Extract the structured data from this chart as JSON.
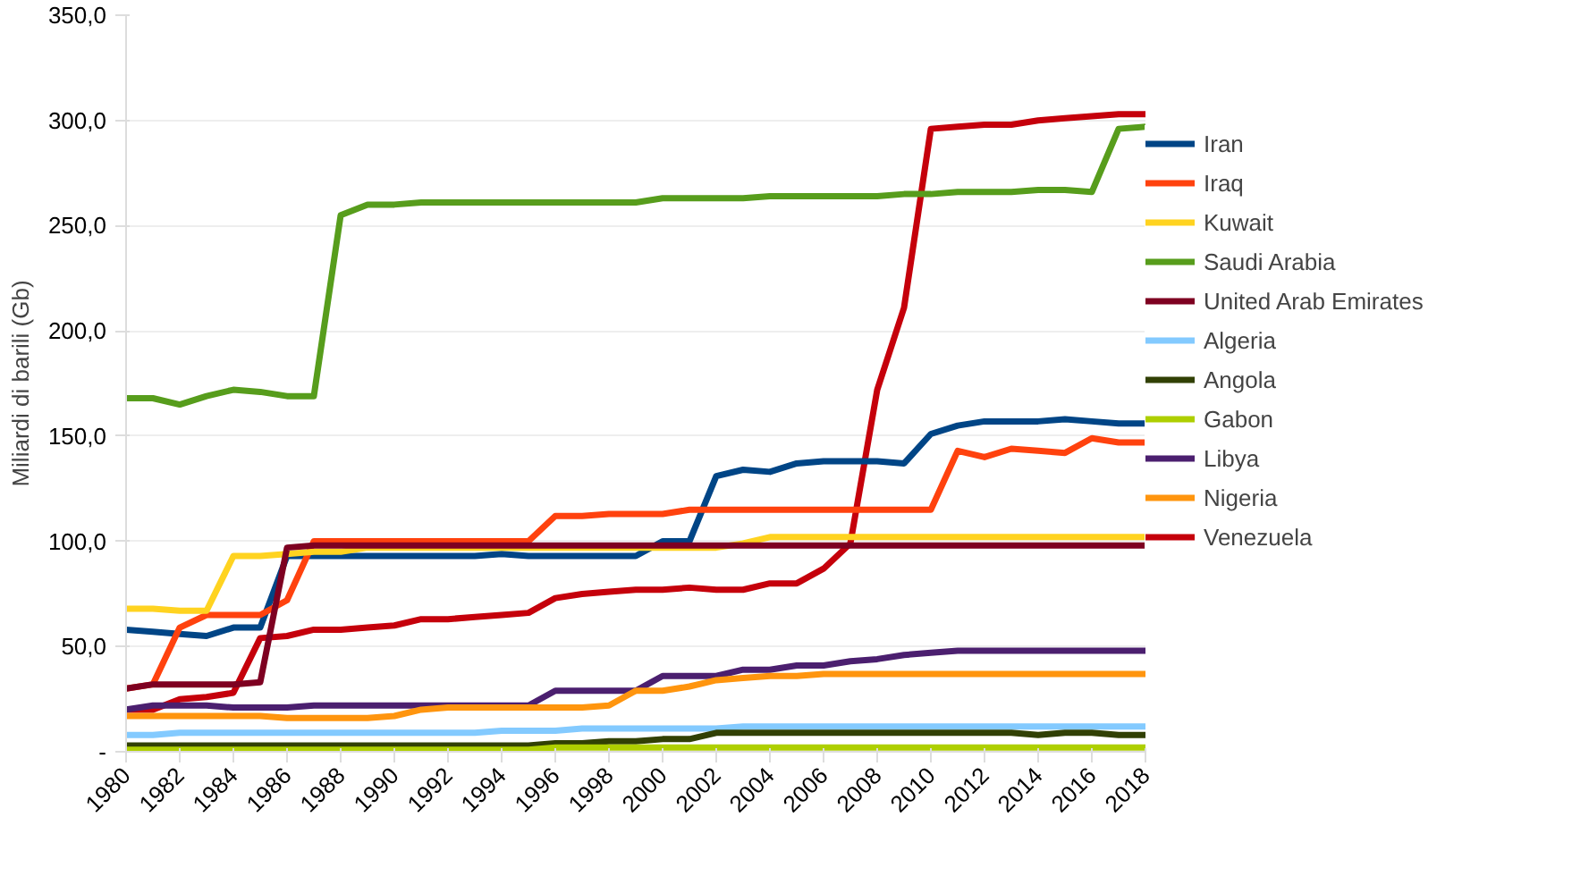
{
  "chart_data": {
    "type": "line",
    "ylabel": "Miliardi di barili (Gb)",
    "x": [
      1980,
      1981,
      1982,
      1983,
      1984,
      1985,
      1986,
      1987,
      1988,
      1989,
      1990,
      1991,
      1992,
      1993,
      1994,
      1995,
      1996,
      1997,
      1998,
      1999,
      2000,
      2001,
      2002,
      2003,
      2004,
      2005,
      2006,
      2007,
      2008,
      2009,
      2010,
      2011,
      2012,
      2013,
      2014,
      2015,
      2016,
      2017,
      2018
    ],
    "xlim": [
      1980,
      2018
    ],
    "xticks": [
      1980,
      1982,
      1984,
      1986,
      1988,
      1990,
      1992,
      1994,
      1996,
      1998,
      2000,
      2002,
      2004,
      2006,
      2008,
      2010,
      2012,
      2014,
      2016,
      2018
    ],
    "ylim": [
      0,
      350
    ],
    "yticks": [
      {
        "value": 0,
        "label": "-"
      },
      {
        "value": 50,
        "label": "50,0"
      },
      {
        "value": 100,
        "label": "100,0"
      },
      {
        "value": 150,
        "label": "150,0"
      },
      {
        "value": 200,
        "label": "200,0"
      },
      {
        "value": 250,
        "label": "250,0"
      },
      {
        "value": 300,
        "label": "300,0"
      },
      {
        "value": 350,
        "label": "350,0"
      }
    ],
    "grid": "y",
    "legend": "right",
    "line_style": "solid",
    "marker": "none",
    "series": [
      {
        "name": "Iran",
        "color": "#004586",
        "values": [
          58,
          57,
          56,
          55,
          59,
          59,
          93,
          93,
          93,
          93,
          93,
          93,
          93,
          93,
          94,
          93,
          93,
          93,
          93,
          93,
          100,
          100,
          131,
          134,
          133,
          137,
          138,
          138,
          138,
          137,
          151,
          155,
          157,
          157,
          157,
          158,
          157,
          156,
          156
        ]
      },
      {
        "name": "Iraq",
        "color": "#ff420e",
        "values": [
          30,
          32,
          59,
          65,
          65,
          65,
          72,
          100,
          100,
          100,
          100,
          100,
          100,
          100,
          100,
          100,
          112,
          112,
          113,
          113,
          113,
          115,
          115,
          115,
          115,
          115,
          115,
          115,
          115,
          115,
          115,
          143,
          140,
          144,
          143,
          142,
          149,
          147,
          147
        ]
      },
      {
        "name": "Kuwait",
        "color": "#ffd320",
        "values": [
          68,
          68,
          67,
          67,
          93,
          93,
          94,
          95,
          95,
          97,
          97,
          97,
          97,
          97,
          97,
          97,
          97,
          97,
          97,
          97,
          97,
          97,
          97,
          99,
          102,
          102,
          102,
          102,
          102,
          102,
          102,
          102,
          102,
          102,
          102,
          102,
          102,
          102,
          102
        ]
      },
      {
        "name": "Saudi Arabia",
        "color": "#579d1c",
        "values": [
          168,
          168,
          165,
          169,
          172,
          171,
          169,
          169,
          255,
          260,
          260,
          261,
          261,
          261,
          261,
          261,
          261,
          261,
          261,
          261,
          263,
          263,
          263,
          263,
          264,
          264,
          264,
          264,
          264,
          265,
          265,
          266,
          266,
          266,
          267,
          267,
          266,
          296,
          297
        ]
      },
      {
        "name": "United Arab Emirates",
        "color": "#7e0021",
        "values": [
          30,
          32,
          32,
          32,
          32,
          33,
          97,
          98,
          98,
          98,
          98,
          98,
          98,
          98,
          98,
          98,
          98,
          98,
          98,
          98,
          98,
          98,
          98,
          98,
          98,
          98,
          98,
          98,
          98,
          98,
          98,
          98,
          98,
          98,
          98,
          98,
          98,
          98,
          98
        ]
      },
      {
        "name": "Algeria",
        "color": "#83caff",
        "values": [
          8,
          8,
          9,
          9,
          9,
          9,
          9,
          9,
          9,
          9,
          9,
          9,
          9,
          9,
          10,
          10,
          10,
          11,
          11,
          11,
          11,
          11,
          11,
          12,
          12,
          12,
          12,
          12,
          12,
          12,
          12,
          12,
          12,
          12,
          12,
          12,
          12,
          12,
          12
        ]
      },
      {
        "name": "Angola",
        "color": "#314004",
        "values": [
          3,
          3,
          3,
          3,
          3,
          3,
          3,
          3,
          3,
          3,
          3,
          3,
          3,
          3,
          3,
          3,
          4,
          4,
          5,
          5,
          6,
          6,
          9,
          9,
          9,
          9,
          9,
          9,
          9,
          9,
          9,
          9,
          9,
          9,
          8,
          9,
          9,
          8,
          8
        ]
      },
      {
        "name": "Gabon",
        "color": "#aecf00",
        "values": [
          1,
          1,
          1,
          1,
          1,
          1,
          1,
          1,
          1,
          1,
          1,
          1,
          1,
          1,
          1,
          1,
          2,
          2,
          2,
          2,
          2,
          2,
          2,
          2,
          2,
          2,
          2,
          2,
          2,
          2,
          2,
          2,
          2,
          2,
          2,
          2,
          2,
          2,
          2
        ]
      },
      {
        "name": "Libya",
        "color": "#4b1f6f",
        "values": [
          20,
          22,
          22,
          22,
          21,
          21,
          21,
          22,
          22,
          22,
          22,
          22,
          22,
          22,
          22,
          22,
          29,
          29,
          29,
          29,
          36,
          36,
          36,
          39,
          39,
          41,
          41,
          43,
          44,
          46,
          47,
          48,
          48,
          48,
          48,
          48,
          48,
          48,
          48
        ]
      },
      {
        "name": "Nigeria",
        "color": "#ff950e",
        "values": [
          17,
          17,
          17,
          17,
          17,
          17,
          16,
          16,
          16,
          16,
          17,
          20,
          21,
          21,
          21,
          21,
          21,
          21,
          22,
          29,
          29,
          31,
          34,
          35,
          36,
          36,
          37,
          37,
          37,
          37,
          37,
          37,
          37,
          37,
          37,
          37,
          37,
          37,
          37
        ]
      },
      {
        "name": "Venezuela",
        "color": "#c5000b",
        "values": [
          20,
          20,
          25,
          26,
          28,
          54,
          55,
          58,
          58,
          59,
          60,
          63,
          63,
          64,
          65,
          66,
          73,
          75,
          76,
          77,
          77,
          78,
          77,
          77,
          80,
          80,
          87,
          99,
          172,
          211,
          296,
          297,
          298,
          298,
          300,
          301,
          302,
          303,
          303
        ]
      }
    ]
  }
}
